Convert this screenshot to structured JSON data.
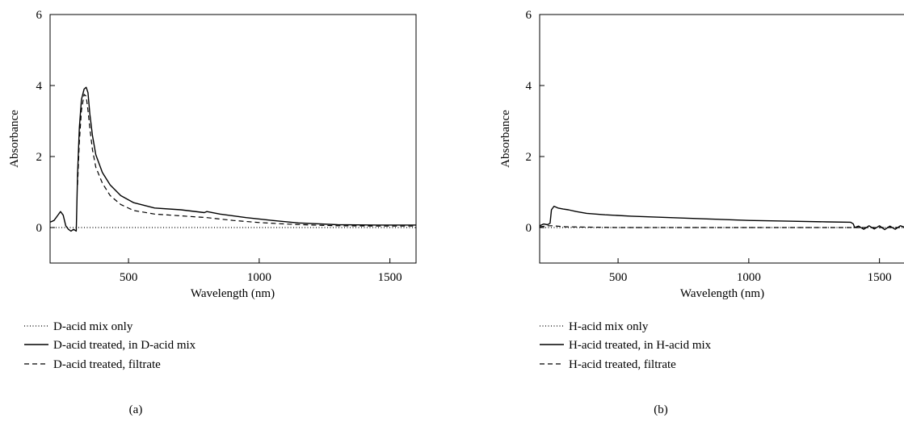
{
  "chart_data": [
    {
      "type": "line",
      "caption": "(a)",
      "xlabel": "Wavelength (nm)",
      "ylabel": "Absorbance",
      "xlim": [
        200,
        1600
      ],
      "ylim": [
        -1,
        6
      ],
      "xticks": [
        500,
        1000,
        1500
      ],
      "yticks": [
        0,
        2,
        4,
        6
      ],
      "grid": false,
      "legend_position": "below",
      "series": [
        {
          "name": "D-acid mix only",
          "style": "dotted",
          "x": [
            200,
            1600
          ],
          "y": [
            0,
            0
          ]
        },
        {
          "name": "D-acid treated, in D-acid mix",
          "style": "solid",
          "x": [
            200,
            215,
            230,
            240,
            250,
            260,
            270,
            280,
            290,
            300,
            305,
            312,
            320,
            330,
            338,
            345,
            352,
            362,
            375,
            400,
            430,
            470,
            520,
            600,
            700,
            790,
            800,
            850,
            950,
            1050,
            1150,
            1300,
            1450,
            1600
          ],
          "y": [
            0.15,
            0.2,
            0.35,
            0.45,
            0.35,
            0.05,
            -0.05,
            -0.1,
            -0.05,
            -0.1,
            1.5,
            2.8,
            3.6,
            3.9,
            3.95,
            3.8,
            3.2,
            2.6,
            2.05,
            1.55,
            1.2,
            0.9,
            0.7,
            0.55,
            0.5,
            0.42,
            0.45,
            0.38,
            0.28,
            0.2,
            0.13,
            0.08,
            0.07,
            0.07
          ]
        },
        {
          "name": "D-acid treated, filtrate",
          "style": "dashed",
          "x": [
            305,
            312,
            320,
            330,
            338,
            345,
            352,
            362,
            375,
            400,
            430,
            470,
            520,
            600,
            700,
            800,
            900,
            1000,
            1100,
            1200,
            1300,
            1450,
            1600
          ],
          "y": [
            1.2,
            2.4,
            3.3,
            3.75,
            3.7,
            3.3,
            2.8,
            2.2,
            1.7,
            1.25,
            0.9,
            0.65,
            0.48,
            0.38,
            0.33,
            0.28,
            0.2,
            0.14,
            0.1,
            0.07,
            0.05,
            0.04,
            0.04
          ]
        }
      ]
    },
    {
      "type": "line",
      "caption": "(b)",
      "xlabel": "Wavelength (nm)",
      "ylabel": "Absorbance",
      "xlim": [
        200,
        1600
      ],
      "ylim": [
        -1,
        6
      ],
      "xticks": [
        500,
        1000,
        1500
      ],
      "yticks": [
        0,
        2,
        4,
        6
      ],
      "grid": false,
      "legend_position": "below",
      "series": [
        {
          "name": "H-acid mix only",
          "style": "dotted",
          "x": [
            200,
            1600
          ],
          "y": [
            0,
            0
          ]
        },
        {
          "name": "H-acid treated, in H-acid mix",
          "style": "solid",
          "x": [
            200,
            215,
            230,
            240,
            245,
            255,
            270,
            290,
            310,
            340,
            380,
            450,
            550,
            700,
            850,
            1000,
            1150,
            1300,
            1390,
            1400,
            1405,
            1420,
            1440,
            1460,
            1480,
            1500,
            1520,
            1540,
            1560,
            1580,
            1600
          ],
          "y": [
            0.05,
            0.1,
            0.08,
            0.12,
            0.5,
            0.6,
            0.55,
            0.52,
            0.5,
            0.45,
            0.4,
            0.36,
            0.32,
            0.28,
            0.24,
            0.2,
            0.18,
            0.16,
            0.15,
            0.1,
            0.0,
            0.04,
            -0.05,
            0.05,
            -0.04,
            0.05,
            -0.06,
            0.04,
            -0.05,
            0.05,
            0.0
          ]
        },
        {
          "name": "H-acid treated, filtrate",
          "style": "dashed",
          "x": [
            200,
            230,
            250,
            300,
            500,
            800,
            1100,
            1400,
            1600
          ],
          "y": [
            0.02,
            0.05,
            0.05,
            0.02,
            0.0,
            0.0,
            0.0,
            0.0,
            0.0
          ]
        }
      ]
    }
  ]
}
